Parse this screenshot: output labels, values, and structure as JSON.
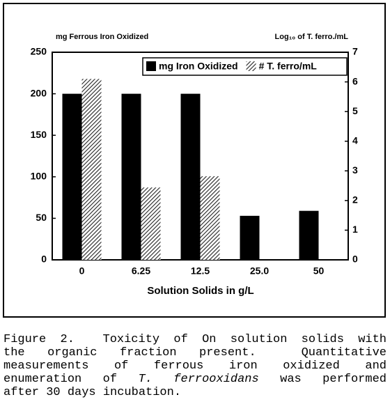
{
  "chart_data": {
    "type": "bar",
    "y_title": "mg Ferrous Iron Oxidized",
    "y2_title": "Log₁₀ of T. ferro./mL",
    "x_title": "Solution Solids in g/L",
    "categories": [
      "0",
      "6.25",
      "12.5",
      "25.0",
      "50"
    ],
    "series": [
      {
        "name": "mg Iron Oxidized",
        "color": "#000000",
        "values": [
          200,
          200,
          200,
          53,
          59
        ]
      },
      {
        "name": "# T. ferro/mL",
        "color": "#555555",
        "axis": "y2",
        "hatch": true,
        "values": [
          6.1,
          2.44,
          2.82,
          null,
          null
        ]
      }
    ],
    "ylim": [
      0,
      250
    ],
    "yticks": [
      0,
      50,
      100,
      150,
      200,
      250
    ],
    "y2lim": [
      0,
      7
    ],
    "y2ticks": [
      0,
      1,
      2,
      3,
      4,
      5,
      6,
      7
    ],
    "legend": "top-right"
  },
  "caption": {
    "lines": [
      [
        "Figure 2.  Toxicity of On solution solids with"
      ],
      [
        "the organic fraction present.  Quantitative"
      ],
      [
        "measurements of ferrous iron oxidized and"
      ],
      [
        "enumeration of ",
        "T. ferrooxidans",
        " was performed"
      ],
      [
        "after 30 days incubation."
      ]
    ]
  }
}
